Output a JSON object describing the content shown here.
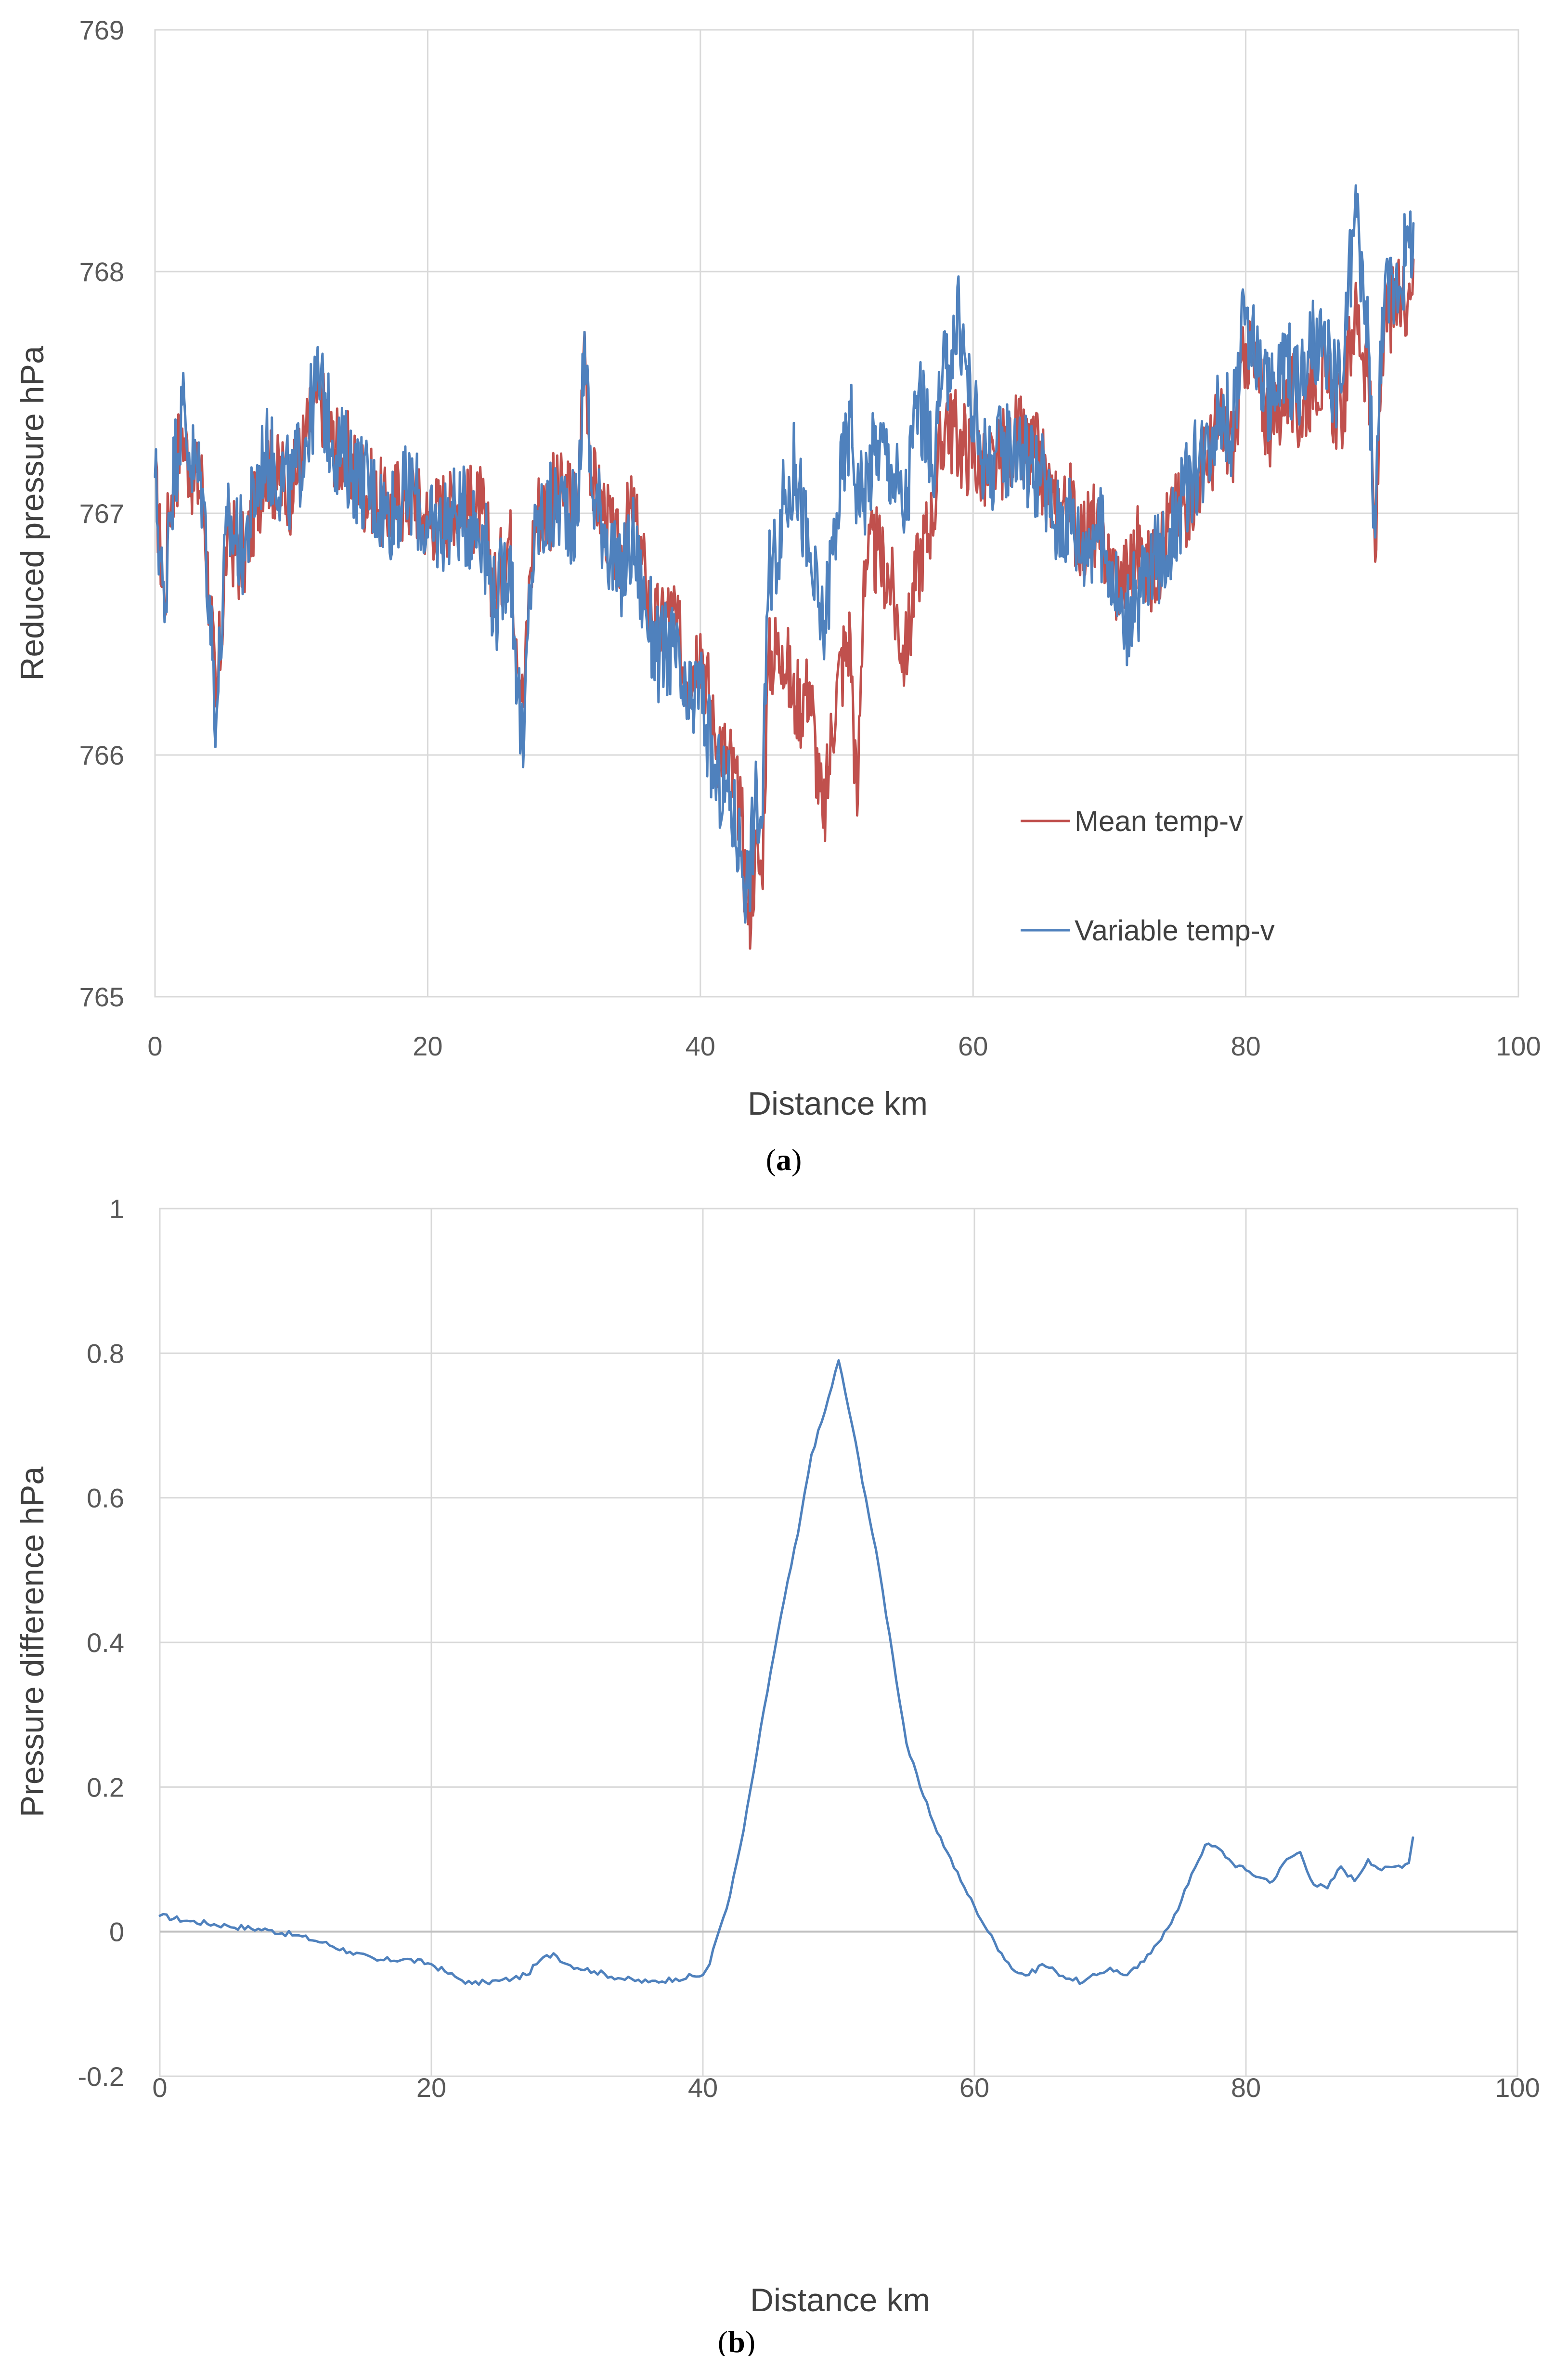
{
  "colors": {
    "mean": "#c0504d",
    "variable": "#4f81bd"
  },
  "chart_data": [
    {
      "type": "line",
      "panel": "a",
      "caption": "(a)",
      "caption_letter": "a",
      "title": "",
      "xlabel": "Distance km",
      "ylabel": "Reduced pressure hPa",
      "xlim": [
        0,
        100
      ],
      "ylim": [
        765,
        769
      ],
      "xticks": [
        0,
        20,
        40,
        60,
        80,
        100
      ],
      "yticks": [
        765,
        766,
        767,
        768,
        769
      ],
      "grid": true,
      "legend": "bottom-right",
      "series": [
        {
          "name": "Mean temp-v",
          "color": "#c0504d",
          "x": [
            0,
            0.7,
            1,
            2,
            2.5,
            3.5,
            4.5,
            5.3,
            6.5,
            8,
            10,
            11,
            12,
            13,
            15,
            17,
            19,
            20,
            22,
            24,
            25,
            26,
            27,
            27.5,
            28,
            30,
            31,
            31.5,
            32,
            33,
            34,
            35,
            36,
            37,
            38,
            39,
            40,
            41,
            42,
            43,
            43.5,
            44,
            44.5,
            45,
            46,
            47,
            48,
            49,
            50,
            51,
            51.5,
            52,
            53,
            54,
            55,
            56,
            57,
            58,
            59,
            60,
            61,
            63,
            65,
            66,
            67,
            68,
            69,
            70,
            71,
            72,
            73,
            74,
            75,
            76,
            77,
            78,
            79,
            80,
            81,
            82,
            83,
            84,
            85,
            86,
            87,
            88,
            89,
            89.5,
            90,
            91,
            92,
            92.3
          ],
          "values": [
            767.15,
            766.6,
            767.0,
            767.35,
            767.2,
            767.1,
            766.2,
            766.9,
            766.8,
            767.2,
            767.1,
            767.3,
            767.5,
            767.3,
            767.15,
            767.0,
            767.1,
            766.95,
            767.05,
            767.0,
            766.65,
            766.9,
            766.2,
            766.75,
            767.0,
            767.1,
            767.0,
            767.75,
            767.15,
            767.0,
            766.8,
            767.0,
            766.7,
            766.5,
            766.6,
            766.3,
            766.5,
            766.1,
            766.0,
            765.75,
            765.3,
            765.6,
            765.5,
            766.4,
            766.45,
            766.2,
            766.3,
            765.7,
            766.3,
            766.5,
            765.75,
            766.8,
            766.85,
            766.7,
            766.4,
            766.8,
            767.0,
            767.4,
            767.3,
            767.25,
            767.15,
            767.3,
            767.2,
            767.0,
            767.05,
            766.9,
            766.95,
            766.8,
            766.7,
            766.85,
            766.75,
            766.9,
            767.0,
            767.1,
            767.2,
            767.35,
            767.25,
            767.7,
            767.5,
            767.35,
            767.55,
            767.4,
            767.6,
            767.5,
            767.4,
            767.85,
            767.6,
            766.8,
            767.75,
            767.85,
            767.95,
            768.05
          ]
        },
        {
          "name": "Variable temp-v",
          "color": "#4f81bd",
          "x": [
            0,
            0.7,
            1,
            2,
            2.5,
            3.5,
            4.5,
            5.3,
            6.5,
            8,
            10,
            11,
            12,
            13,
            15,
            17,
            19,
            20,
            22,
            24,
            25,
            26,
            27,
            27.5,
            28,
            30,
            31,
            31.5,
            32,
            33,
            34,
            35,
            36,
            37,
            38,
            39,
            40,
            41,
            42,
            43,
            43.5,
            44,
            44.5,
            45,
            46,
            47,
            48,
            49,
            50,
            51,
            51.5,
            52,
            53,
            54,
            55,
            56,
            57,
            58,
            59,
            60,
            61,
            63,
            65,
            66,
            67,
            68,
            69,
            70,
            71,
            72,
            73,
            74,
            75,
            76,
            77,
            78,
            79,
            80,
            81,
            82,
            83,
            84,
            85,
            86,
            87,
            88,
            89,
            89.5,
            90,
            91,
            92,
            92.3
          ],
          "values": [
            767.15,
            766.55,
            767.0,
            767.45,
            767.25,
            767.1,
            766.15,
            766.95,
            766.85,
            767.25,
            767.1,
            767.3,
            767.55,
            767.3,
            767.15,
            767.0,
            767.1,
            766.9,
            767.0,
            766.95,
            766.6,
            766.85,
            765.95,
            766.7,
            766.95,
            767.05,
            766.95,
            767.75,
            767.1,
            766.95,
            766.7,
            766.9,
            766.6,
            766.4,
            766.45,
            766.15,
            766.3,
            765.9,
            765.85,
            765.6,
            765.45,
            765.8,
            765.7,
            766.7,
            767.0,
            767.2,
            766.8,
            766.5,
            767.0,
            767.4,
            767.1,
            767.1,
            767.3,
            767.2,
            767.0,
            767.5,
            767.2,
            767.6,
            767.8,
            767.4,
            767.2,
            767.3,
            767.15,
            766.95,
            767.0,
            766.85,
            766.95,
            766.8,
            766.55,
            766.65,
            766.75,
            766.85,
            767.0,
            767.15,
            767.25,
            767.45,
            767.35,
            767.85,
            767.6,
            767.45,
            767.65,
            767.5,
            767.7,
            767.6,
            767.5,
            768.25,
            767.7,
            766.9,
            767.85,
            767.95,
            768.1,
            768.2
          ]
        }
      ]
    },
    {
      "type": "line",
      "panel": "b",
      "caption": "(b)",
      "caption_letter": "b",
      "title": "",
      "xlabel": "Distance km",
      "ylabel": "Pressure difference hPa",
      "xlim": [
        0,
        100
      ],
      "ylim": [
        -0.2,
        1
      ],
      "xticks": [
        0,
        20,
        40,
        60,
        80,
        100
      ],
      "yticks": [
        -0.2,
        0,
        0.2,
        0.4,
        0.6,
        0.8,
        1
      ],
      "ytick_labels": [
        "-0.2",
        "0",
        "0.2",
        "0.4",
        "0.6",
        "0.8",
        "1"
      ],
      "grid": true,
      "legend": "none",
      "series": [
        {
          "name": "Pressure difference",
          "color": "#4f81bd",
          "x": [
            0,
            2,
            5,
            8,
            10,
            12,
            14,
            16,
            18,
            20,
            21,
            22,
            23,
            24,
            25,
            26,
            27,
            28,
            29,
            30,
            32,
            34,
            36,
            38,
            40,
            40.5,
            41,
            42,
            43,
            44,
            45,
            46,
            47,
            48,
            49,
            50,
            51,
            52,
            53,
            54,
            55,
            56,
            57,
            58,
            59,
            60,
            61,
            62,
            63,
            64,
            65,
            66,
            67,
            68,
            69,
            70,
            71,
            72,
            73,
            74,
            75,
            76,
            77,
            78,
            79,
            80,
            81,
            82,
            83,
            84,
            85,
            86,
            87,
            88,
            89,
            90,
            91,
            92,
            92.3
          ],
          "values": [
            0.022,
            0.015,
            0.008,
            0.002,
            -0.005,
            -0.015,
            -0.028,
            -0.04,
            -0.038,
            -0.045,
            -0.055,
            -0.065,
            -0.072,
            -0.07,
            -0.068,
            -0.065,
            -0.06,
            -0.04,
            -0.03,
            -0.045,
            -0.055,
            -0.065,
            -0.07,
            -0.065,
            -0.06,
            -0.045,
            -0.01,
            0.05,
            0.14,
            0.25,
            0.36,
            0.46,
            0.55,
            0.66,
            0.72,
            0.79,
            0.7,
            0.6,
            0.5,
            0.38,
            0.26,
            0.2,
            0.15,
            0.11,
            0.07,
            0.035,
            0.0,
            -0.03,
            -0.055,
            -0.06,
            -0.045,
            -0.055,
            -0.065,
            -0.07,
            -0.06,
            -0.05,
            -0.06,
            -0.05,
            -0.03,
            0.0,
            0.03,
            0.08,
            0.12,
            0.115,
            0.095,
            0.085,
            0.075,
            0.07,
            0.1,
            0.11,
            0.065,
            0.06,
            0.09,
            0.07,
            0.1,
            0.085,
            0.09,
            0.095,
            0.13
          ]
        }
      ]
    }
  ]
}
